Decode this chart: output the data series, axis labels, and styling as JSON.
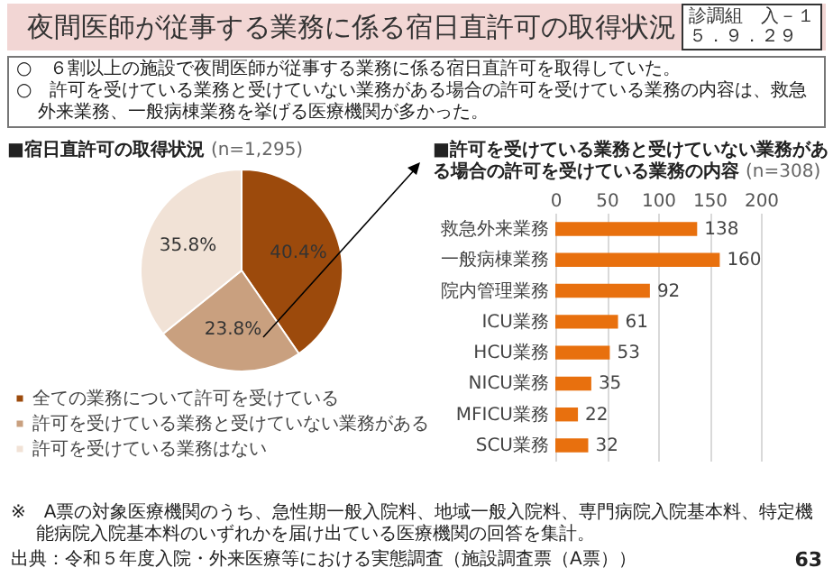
{
  "chart_data": [
    {
      "type": "other",
      "title": "夜間医師が従事する業務に係る宿日直許可の取得状況",
      "annotations": [
        "診調組　入－１",
        "５．９．２９",
        "○　６割以上の施設で夜間医師が従事する業務に係る宿日直許可を取得していた。",
        "○　許可を受けている業務と受けていない業務がある場合の許可を受けている業務の内容は、救急外来業務、一般病棟業務を挙げる医療機関が多かった。",
        "※　A票の対象医療機関のうち、急性期一般入院料、地域一般入院料、専門病院入院基本料、特定機能病院入院基本料のいずれかを届け出ている医療機関の回答を集計。",
        "出典：令和５年度入院・外来医療等における実態調査（施設調査票（A票））",
        "63"
      ]
    },
    {
      "type": "pie",
      "title": "■宿日直許可の取得状況",
      "subtitle": "(n=1,295)",
      "categories": [
        "全ての業務について許可を受けている",
        "許可を受けている業務と受けていない業務がある",
        "許可を受けている業務はない"
      ],
      "values": [
        40.4,
        23.8,
        35.8
      ],
      "colors": [
        "#9c4a0c",
        "#c9a07f",
        "#f1e2d6"
      ],
      "value_labels": [
        "40.4%",
        "23.8%",
        "35.8%"
      ],
      "legend": "bottom"
    },
    {
      "type": "bar",
      "orientation": "horizontal",
      "title": "■許可を受けている業務と受けていない業務がある場合の許可を受けている業務の内容",
      "subtitle": "(n=308)",
      "categories": [
        "救急外来業務",
        "一般病棟業務",
        "院内管理業務",
        "ICU業務",
        "HCU業務",
        "NICU業務",
        "MFICU業務",
        "SCU業務"
      ],
      "values": [
        138,
        160,
        92,
        61,
        53,
        35,
        22,
        32
      ],
      "color": "#e8700e",
      "xlim": [
        0,
        200
      ],
      "xticks": [
        0,
        50,
        100,
        150,
        200
      ],
      "grid": "x",
      "data_labels": true
    }
  ]
}
